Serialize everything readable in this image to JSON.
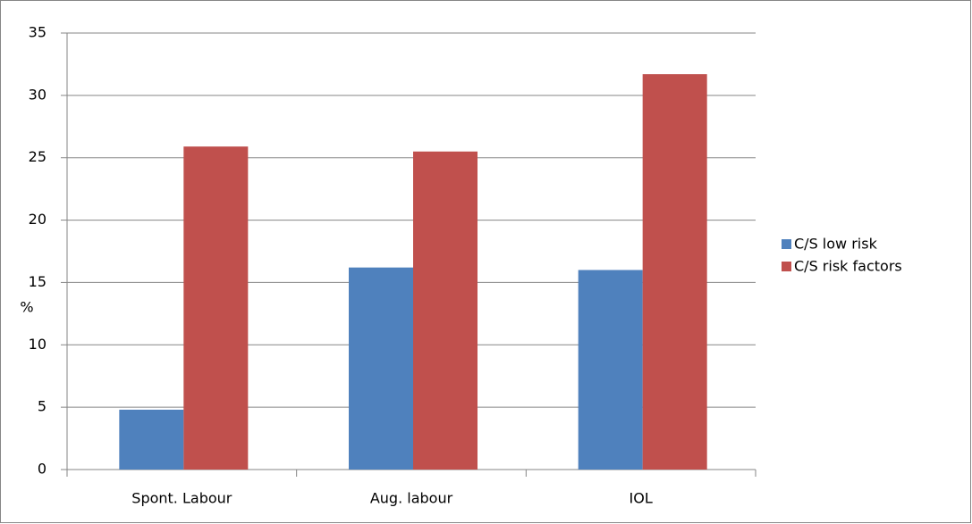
{
  "chart_data": {
    "type": "bar",
    "y_label": "%",
    "categories": [
      "Spont. Labour",
      "Aug. labour",
      "IOL"
    ],
    "series": [
      {
        "name": "C/S low risk",
        "color": "#4f81bd",
        "values": [
          4.8,
          16.2,
          16.0
        ]
      },
      {
        "name": "C/S risk factors",
        "color": "#c0504d",
        "values": [
          25.9,
          25.5,
          31.7
        ]
      }
    ],
    "ylim": [
      0,
      35
    ],
    "yticks": [
      0,
      5,
      10,
      15,
      20,
      25,
      30,
      35
    ],
    "grid": true,
    "legend": "right"
  }
}
